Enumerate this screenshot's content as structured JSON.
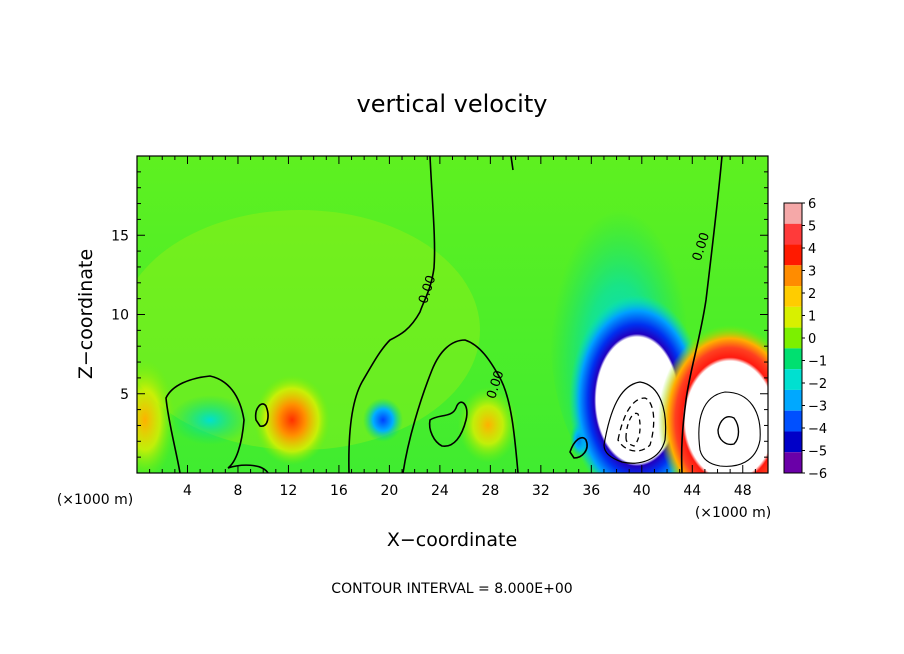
{
  "chart_data": {
    "type": "heatmap",
    "title": "vertical velocity",
    "xlabel": "X−coordinate",
    "ylabel": "Z−coordinate",
    "x_unit_left": "(×1000 m)",
    "x_unit_right": "(×1000 m)",
    "xlim": [
      0,
      50
    ],
    "ylim": [
      0,
      20
    ],
    "x_ticks": [
      4,
      8,
      12,
      16,
      20,
      24,
      28,
      32,
      36,
      40,
      44,
      48
    ],
    "x_tick_labels": [
      "4",
      "8",
      "12",
      "16",
      "20",
      "24",
      "28",
      "32",
      "36",
      "40",
      "44",
      "48"
    ],
    "y_ticks": [
      5,
      10,
      15
    ],
    "y_tick_labels": [
      "5",
      "10",
      "15"
    ],
    "footer": "CONTOUR INTERVAL = 8.000E+00",
    "contour_labels": [
      {
        "text": "0.00",
        "x": 23.3,
        "y": 11.5
      },
      {
        "text": "0.00",
        "x": 28.7,
        "y": 5.5
      },
      {
        "text": "0.00",
        "x": 45.0,
        "y": 14.2
      }
    ],
    "colorbar": {
      "levels": [
        6,
        5,
        4,
        3,
        2,
        1,
        0,
        -1,
        -2,
        -3,
        -4,
        -5,
        -6
      ],
      "labels": [
        "6",
        "5",
        "4",
        "3",
        "2",
        "1",
        "0",
        "−1",
        "−2",
        "−3",
        "−4",
        "−5",
        "−6"
      ],
      "colors": [
        "#f5a8a8",
        "#ff3a3a",
        "#ff1a00",
        "#ff8c00",
        "#ffcc00",
        "#d8f000",
        "#7cf000",
        "#00e070",
        "#00e0d0",
        "#00a8ff",
        "#0050ff",
        "#0000c8",
        "#6a00a8"
      ]
    },
    "field_features": [
      {
        "name": "downdraft",
        "x": 39.5,
        "z": 3.2,
        "value": -6
      },
      {
        "name": "updraft",
        "x": 46.5,
        "z": 3.2,
        "value": 6
      },
      {
        "name": "updraft-weak",
        "x": 12.2,
        "z": 3.2,
        "value": 3
      },
      {
        "name": "downdraft-weak",
        "x": 19.5,
        "z": 3.3,
        "value": -3
      }
    ]
  }
}
